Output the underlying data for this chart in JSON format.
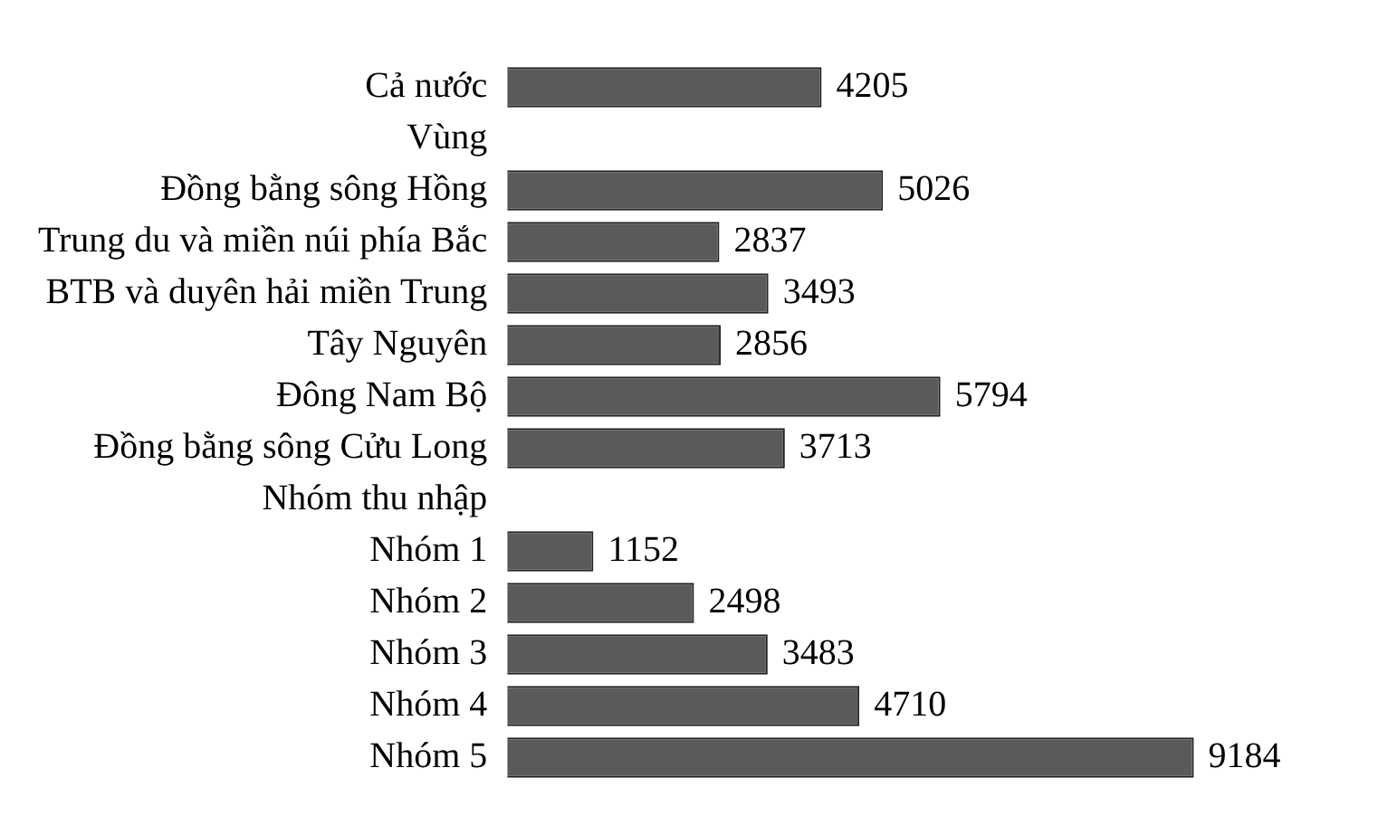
{
  "chart_data": {
    "type": "bar",
    "orientation": "horizontal",
    "data_labels": true,
    "categories": [
      "Cả nước",
      "Vùng",
      "Đồng bằng sông Hồng",
      "Trung du và miền núi phía Bắc",
      "BTB và duyên hải miền Trung",
      "Tây Nguyên",
      "Đông Nam Bộ",
      "Đồng bằng sông Cửu Long",
      "Nhóm thu nhập",
      "Nhóm 1",
      "Nhóm 2",
      "Nhóm 3",
      "Nhóm 4",
      "Nhóm 5"
    ],
    "values": [
      4205,
      null,
      5026,
      2837,
      3493,
      2856,
      5794,
      3713,
      null,
      1152,
      2498,
      3483,
      4710,
      9184
    ],
    "color": "#5a5a5a"
  }
}
